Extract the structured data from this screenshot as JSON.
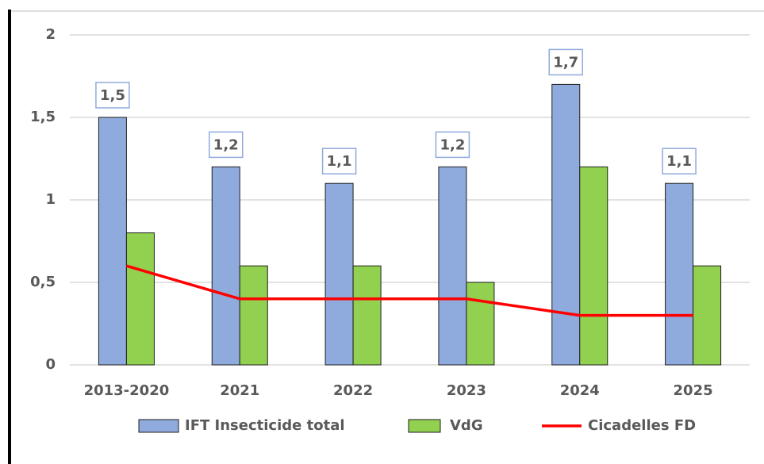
{
  "chart_data": {
    "type": "bar",
    "categories": [
      "2013-2020",
      "2021",
      "2022",
      "2023",
      "2024",
      "2025"
    ],
    "series": [
      {
        "name": "IFT Insecticide total",
        "type": "bar",
        "color": "#8faadc",
        "values": [
          1.5,
          1.2,
          1.1,
          1.2,
          1.7,
          1.1
        ],
        "value_labels": [
          "1,5",
          "1,2",
          "1,1",
          "1,2",
          "1,7",
          "1,1"
        ]
      },
      {
        "name": "VdG",
        "type": "bar",
        "color": "#92d050",
        "values": [
          0.8,
          0.6,
          0.6,
          0.5,
          1.2,
          0.6
        ]
      },
      {
        "name": "Cicadelles FD",
        "type": "line",
        "color": "#ff0000",
        "values": [
          0.6,
          0.4,
          0.4,
          0.4,
          0.3,
          0.3
        ]
      }
    ],
    "ylim": [
      0,
      2
    ],
    "yticks": [
      0,
      {
        "value": 0.5,
        "label": "0,5"
      },
      1,
      {
        "value": 1.5,
        "label": "1,5"
      },
      2
    ],
    "grid": true,
    "legend": "bottom"
  }
}
